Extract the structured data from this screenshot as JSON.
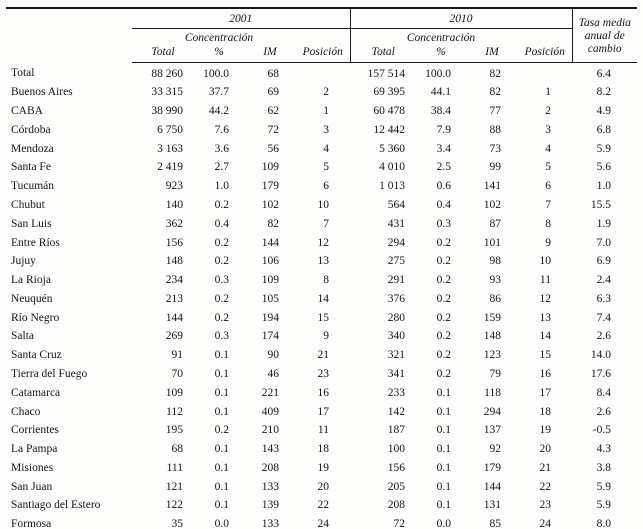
{
  "table": {
    "year_headers": [
      "2001",
      "2010"
    ],
    "concentracion_label": "Concentración",
    "subheaders": [
      "Total",
      "%",
      "IM",
      "Posición"
    ],
    "tasa_header": "Tasa media anual de cambio",
    "rows": [
      {
        "name": "Total",
        "y2001": [
          "88 260",
          "100.0",
          "68",
          ""
        ],
        "y2010": [
          "157 514",
          "100.0",
          "82",
          ""
        ],
        "tasa": "6.4"
      },
      {
        "name": "Buenos Aires",
        "y2001": [
          "33 315",
          "37.7",
          "69",
          "2"
        ],
        "y2010": [
          "69 395",
          "44.1",
          "82",
          "1"
        ],
        "tasa": "8.2"
      },
      {
        "name": "CABA",
        "y2001": [
          "38 990",
          "44.2",
          "62",
          "1"
        ],
        "y2010": [
          "60 478",
          "38.4",
          "77",
          "2"
        ],
        "tasa": "4.9"
      },
      {
        "name": "Córdoba",
        "y2001": [
          "6 750",
          "7.6",
          "72",
          "3"
        ],
        "y2010": [
          "12 442",
          "7.9",
          "88",
          "3"
        ],
        "tasa": "6.8"
      },
      {
        "name": "Mendoza",
        "y2001": [
          "3 163",
          "3.6",
          "56",
          "4"
        ],
        "y2010": [
          "5 360",
          "3.4",
          "73",
          "4"
        ],
        "tasa": "5.9"
      },
      {
        "name": "Santa Fe",
        "y2001": [
          "2 419",
          "2.7",
          "109",
          "5"
        ],
        "y2010": [
          "4 010",
          "2.5",
          "99",
          "5"
        ],
        "tasa": "5.6"
      },
      {
        "name": "Tucumán",
        "y2001": [
          "923",
          "1.0",
          "179",
          "6"
        ],
        "y2010": [
          "1 013",
          "0.6",
          "141",
          "6"
        ],
        "tasa": "1.0"
      },
      {
        "name": "Chubut",
        "y2001": [
          "140",
          "0.2",
          "102",
          "10"
        ],
        "y2010": [
          "564",
          "0.4",
          "102",
          "7"
        ],
        "tasa": "15.5"
      },
      {
        "name": "San Luis",
        "y2001": [
          "362",
          "0.4",
          "82",
          "7"
        ],
        "y2010": [
          "431",
          "0.3",
          "87",
          "8"
        ],
        "tasa": "1.9"
      },
      {
        "name": "Entre Ríos",
        "y2001": [
          "156",
          "0.2",
          "144",
          "12"
        ],
        "y2010": [
          "294",
          "0.2",
          "101",
          "9"
        ],
        "tasa": "7.0"
      },
      {
        "name": "Jujuy",
        "y2001": [
          "148",
          "0.2",
          "106",
          "13"
        ],
        "y2010": [
          "275",
          "0.2",
          "98",
          "10"
        ],
        "tasa": "6.9"
      },
      {
        "name": "La Rioja",
        "y2001": [
          "234",
          "0.3",
          "109",
          "8"
        ],
        "y2010": [
          "291",
          "0.2",
          "93",
          "11"
        ],
        "tasa": "2.4"
      },
      {
        "name": "Neuquén",
        "y2001": [
          "213",
          "0.2",
          "105",
          "14"
        ],
        "y2010": [
          "376",
          "0.2",
          "86",
          "12"
        ],
        "tasa": "6.3"
      },
      {
        "name": "Río Negro",
        "y2001": [
          "144",
          "0.2",
          "194",
          "15"
        ],
        "y2010": [
          "280",
          "0.2",
          "159",
          "13"
        ],
        "tasa": "7.4"
      },
      {
        "name": "Salta",
        "y2001": [
          "269",
          "0.3",
          "174",
          "9"
        ],
        "y2010": [
          "340",
          "0.2",
          "148",
          "14"
        ],
        "tasa": "2.6"
      },
      {
        "name": "Santa Cruz",
        "y2001": [
          "91",
          "0.1",
          "90",
          "21"
        ],
        "y2010": [
          "321",
          "0.2",
          "123",
          "15"
        ],
        "tasa": "14.0"
      },
      {
        "name": "Tierra del Fuego",
        "y2001": [
          "70",
          "0.1",
          "46",
          "23"
        ],
        "y2010": [
          "341",
          "0.2",
          "79",
          "16"
        ],
        "tasa": "17.6"
      },
      {
        "name": "Catamarca",
        "y2001": [
          "109",
          "0.1",
          "221",
          "16"
        ],
        "y2010": [
          "233",
          "0.1",
          "118",
          "17"
        ],
        "tasa": "8.4"
      },
      {
        "name": "Chaco",
        "y2001": [
          "112",
          "0.1",
          "409",
          "17"
        ],
        "y2010": [
          "142",
          "0.1",
          "294",
          "18"
        ],
        "tasa": "2.6"
      },
      {
        "name": "Corrientes",
        "y2001": [
          "195",
          "0.2",
          "210",
          "11"
        ],
        "y2010": [
          "187",
          "0.1",
          "137",
          "19"
        ],
        "tasa": "-0.5"
      },
      {
        "name": "La Pampa",
        "y2001": [
          "68",
          "0.1",
          "143",
          "18"
        ],
        "y2010": [
          "100",
          "0.1",
          "92",
          "20"
        ],
        "tasa": "4.3"
      },
      {
        "name": "Misiones",
        "y2001": [
          "111",
          "0.1",
          "208",
          "19"
        ],
        "y2010": [
          "156",
          "0.1",
          "179",
          "21"
        ],
        "tasa": "3.8"
      },
      {
        "name": "San Juan",
        "y2001": [
          "121",
          "0.1",
          "133",
          "20"
        ],
        "y2010": [
          "205",
          "0.1",
          "144",
          "22"
        ],
        "tasa": "5.9"
      },
      {
        "name": "Santiago del Estero",
        "y2001": [
          "122",
          "0.1",
          "139",
          "22"
        ],
        "y2010": [
          "208",
          "0.1",
          "131",
          "23"
        ],
        "tasa": "5.9"
      },
      {
        "name": "Formosa",
        "y2001": [
          "35",
          "0.0",
          "133",
          "24"
        ],
        "y2010": [
          "72",
          "0.0",
          "85",
          "24"
        ],
        "tasa": "8.0"
      }
    ]
  }
}
